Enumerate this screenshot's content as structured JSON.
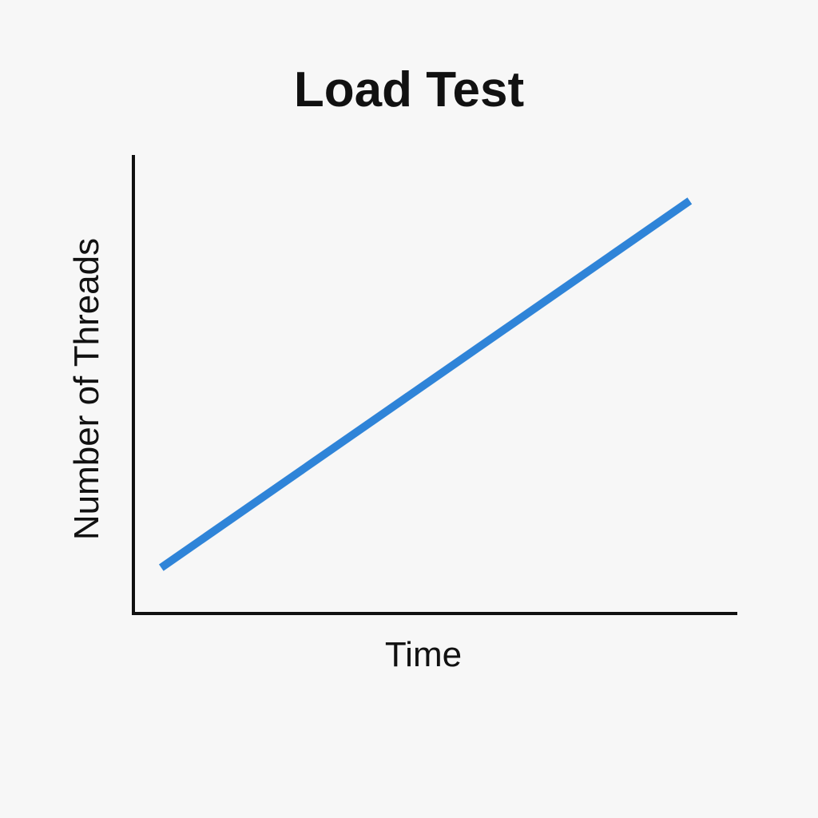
{
  "chart_data": {
    "type": "line",
    "title": "Load Test",
    "xlabel": "Time",
    "ylabel": "Number of Threads",
    "x": [
      0.05,
      1.0
    ],
    "series": [
      {
        "values": [
          0.1,
          0.9
        ]
      }
    ],
    "xlim": [
      0,
      1.1
    ],
    "ylim": [
      0,
      1.0
    ],
    "grid": false,
    "ticks_shown": false,
    "legend": "none",
    "line_color": "#2f84d8",
    "axis_color": "#111111",
    "background_color": "#f7f7f7"
  }
}
